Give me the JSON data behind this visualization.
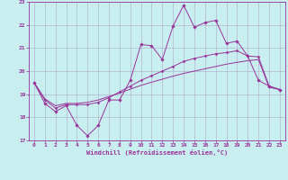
{
  "xlabel": "Windchill (Refroidissement éolien,°C)",
  "line_color": "#993399",
  "bg_color": "#c8eef0",
  "grid_color": "#aaaacc",
  "xlim": [
    -0.5,
    23.5
  ],
  "ylim": [
    17,
    23
  ],
  "yticks": [
    17,
    18,
    19,
    20,
    21,
    22,
    23
  ],
  "xticks": [
    0,
    1,
    2,
    3,
    4,
    5,
    6,
    7,
    8,
    9,
    10,
    11,
    12,
    13,
    14,
    15,
    16,
    17,
    18,
    19,
    20,
    21,
    22,
    23
  ],
  "line1_x": [
    0,
    1,
    2,
    3,
    4,
    5,
    6,
    7,
    8,
    9,
    10,
    11,
    12,
    13,
    14,
    15,
    16,
    17,
    18,
    19,
    20,
    21,
    22,
    23
  ],
  "line1_y": [
    19.5,
    18.6,
    18.25,
    18.5,
    17.65,
    17.2,
    17.65,
    18.75,
    18.75,
    19.6,
    21.15,
    21.1,
    20.5,
    21.95,
    22.85,
    21.9,
    22.1,
    22.2,
    21.2,
    21.3,
    20.65,
    19.6,
    19.35,
    19.2
  ],
  "line2_x": [
    0,
    1,
    2,
    3,
    4,
    5,
    6,
    7,
    8,
    9,
    10,
    11,
    12,
    13,
    14,
    15,
    16,
    17,
    18,
    19,
    20,
    21,
    22,
    23
  ],
  "line2_y": [
    19.5,
    18.75,
    18.4,
    18.55,
    18.55,
    18.55,
    18.65,
    18.85,
    19.1,
    19.35,
    19.6,
    19.8,
    20.0,
    20.2,
    20.42,
    20.55,
    20.65,
    20.75,
    20.8,
    20.88,
    20.65,
    20.62,
    19.35,
    19.2
  ],
  "line3_x": [
    0,
    1,
    2,
    3,
    4,
    5,
    6,
    7,
    8,
    9,
    10,
    11,
    12,
    13,
    14,
    15,
    16,
    17,
    18,
    19,
    20,
    21,
    22,
    23
  ],
  "line3_y": [
    19.5,
    18.8,
    18.5,
    18.6,
    18.6,
    18.65,
    18.75,
    18.9,
    19.05,
    19.22,
    19.38,
    19.52,
    19.65,
    19.78,
    19.9,
    20.0,
    20.1,
    20.2,
    20.3,
    20.38,
    20.45,
    20.5,
    19.3,
    19.2
  ]
}
